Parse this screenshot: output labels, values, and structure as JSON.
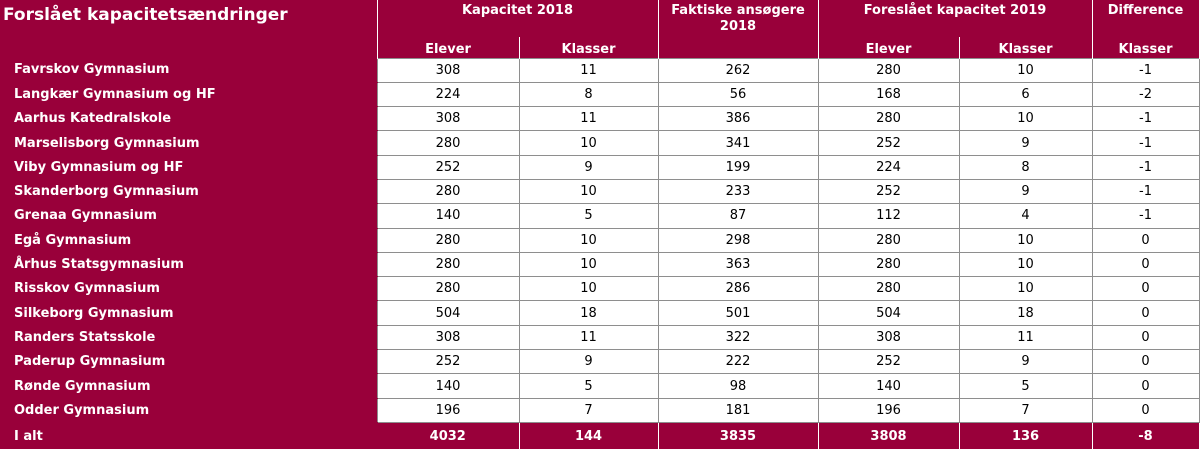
{
  "table": {
    "title": "Forslået kapacitetsændringer",
    "groups": {
      "kap2018": "Kapacitet 2018",
      "faktiske": "Faktiske ansøgere 2018",
      "foreslaet2019": "Foreslået kapacitet 2019",
      "difference": "Difference"
    },
    "subheaders": {
      "elever_2018": "Elever",
      "klasser_2018": "Klasser",
      "elever_2019": "Elever",
      "klasser_2019": "Klasser",
      "klasser_diff": "Klasser"
    },
    "rows": [
      {
        "name": "Favrskov Gymnasium",
        "elever2018": "308",
        "klasser2018": "11",
        "ansoegere": "262",
        "elever2019": "280",
        "klasser2019": "10",
        "diff": "-1"
      },
      {
        "name": "Langkær Gymnasium og HF",
        "elever2018": "224",
        "klasser2018": "8",
        "ansoegere": "56",
        "elever2019": "168",
        "klasser2019": "6",
        "diff": "-2"
      },
      {
        "name": "Aarhus Katedralskole",
        "elever2018": "308",
        "klasser2018": "11",
        "ansoegere": "386",
        "elever2019": "280",
        "klasser2019": "10",
        "diff": "-1"
      },
      {
        "name": "Marselisborg Gymnasium",
        "elever2018": "280",
        "klasser2018": "10",
        "ansoegere": "341",
        "elever2019": "252",
        "klasser2019": "9",
        "diff": "-1"
      },
      {
        "name": "Viby Gymnasium og HF",
        "elever2018": "252",
        "klasser2018": "9",
        "ansoegere": "199",
        "elever2019": "224",
        "klasser2019": "8",
        "diff": "-1"
      },
      {
        "name": "Skanderborg Gymnasium",
        "elever2018": "280",
        "klasser2018": "10",
        "ansoegere": "233",
        "elever2019": "252",
        "klasser2019": "9",
        "diff": "-1"
      },
      {
        "name": "Grenaa Gymnasium",
        "elever2018": "140",
        "klasser2018": "5",
        "ansoegere": "87",
        "elever2019": "112",
        "klasser2019": "4",
        "diff": "-1"
      },
      {
        "name": "Egå Gymnasium",
        "elever2018": "280",
        "klasser2018": "10",
        "ansoegere": "298",
        "elever2019": "280",
        "klasser2019": "10",
        "diff": "0"
      },
      {
        "name": "Århus Statsgymnasium",
        "elever2018": "280",
        "klasser2018": "10",
        "ansoegere": "363",
        "elever2019": "280",
        "klasser2019": "10",
        "diff": "0"
      },
      {
        "name": "Risskov Gymnasium",
        "elever2018": "280",
        "klasser2018": "10",
        "ansoegere": "286",
        "elever2019": "280",
        "klasser2019": "10",
        "diff": "0"
      },
      {
        "name": "Silkeborg Gymnasium",
        "elever2018": "504",
        "klasser2018": "18",
        "ansoegere": "501",
        "elever2019": "504",
        "klasser2019": "18",
        "diff": "0"
      },
      {
        "name": "Randers Statsskole",
        "elever2018": "308",
        "klasser2018": "11",
        "ansoegere": "322",
        "elever2019": "308",
        "klasser2019": "11",
        "diff": "0"
      },
      {
        "name": "Paderup Gymnasium",
        "elever2018": "252",
        "klasser2018": "9",
        "ansoegere": "222",
        "elever2019": "252",
        "klasser2019": "9",
        "diff": "0"
      },
      {
        "name": "Rønde Gymnasium",
        "elever2018": "140",
        "klasser2018": "5",
        "ansoegere": "98",
        "elever2019": "140",
        "klasser2019": "5",
        "diff": "0"
      },
      {
        "name": "Odder Gymnasium",
        "elever2018": "196",
        "klasser2018": "7",
        "ansoegere": "181",
        "elever2019": "196",
        "klasser2019": "7",
        "diff": "0"
      }
    ],
    "total": {
      "name": "I alt",
      "elever2018": "4032",
      "klasser2018": "144",
      "ansoegere": "3835",
      "elever2019": "3808",
      "klasser2019": "136",
      "diff": "-8"
    }
  },
  "colors": {
    "header_bg": "#99003a",
    "header_text": "#ffffff",
    "cell_border": "#8e8e8e"
  }
}
